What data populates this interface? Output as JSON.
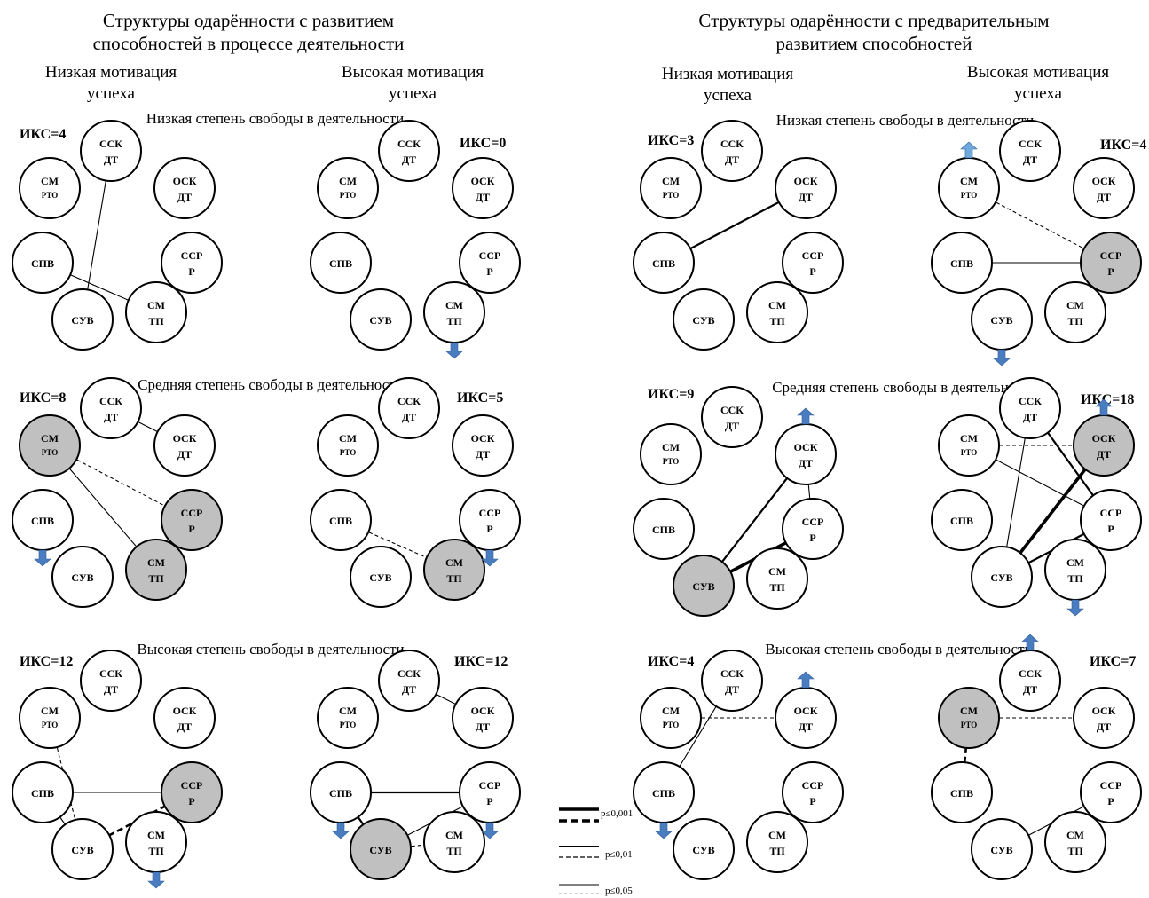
{
  "headers": {
    "left_title_1": "Структуры одарённости с развитием",
    "left_title_2": "способностей в процессе деятельности",
    "right_title_1": "Структуры одарённости с предварительным",
    "right_title_2": "развитием способностей",
    "low_motivation_1": "Низкая мотивация",
    "low_motivation_2": "успеха",
    "high_motivation_1": "Высокая мотивация",
    "high_motivation_2": "успеха"
  },
  "rows": {
    "low": "Низкая степень свободы в деятельности",
    "mid": "Средняя степень свободы в деятельности",
    "high": "Высокая степень свободы в деятельности"
  },
  "node_labels": {
    "SSK": [
      "ССК",
      "ДТ"
    ],
    "OSK": [
      "ОСК",
      "ДТ"
    ],
    "SSR": [
      "ССР",
      "Р"
    ],
    "SMTP": [
      "СМ",
      "ТП"
    ],
    "SUV": [
      "СУВ"
    ],
    "SPV": [
      "СПВ"
    ],
    "SMRTO": [
      "СМ",
      "РТО"
    ]
  },
  "panels": [
    {
      "id": "L-low-lm",
      "iks": "ИКС=4",
      "highlight": [],
      "edges": [
        [
          "SSK",
          "SUV",
          "solid-thin"
        ],
        [
          "SPV",
          "SMTP",
          "solid-thin"
        ]
      ],
      "arrows": []
    },
    {
      "id": "L-low-hm",
      "iks": "ИКС=0",
      "highlight": [],
      "edges": [],
      "arrows": [
        [
          "SMTP",
          "down"
        ]
      ]
    },
    {
      "id": "R-low-lm",
      "iks": "ИКС=3",
      "highlight": [],
      "edges": [
        [
          "SPV",
          "OSK",
          "solid-bold"
        ]
      ],
      "arrows": []
    },
    {
      "id": "R-low-hm",
      "iks": "ИКС=4",
      "highlight": [
        "SSR"
      ],
      "edges": [
        [
          "SMRTO",
          "SSR",
          "dash-thin"
        ],
        [
          "SPV",
          "SSR",
          "solid-thin"
        ]
      ],
      "arrows": [
        [
          "SMRTO",
          "up"
        ],
        [
          "SUV",
          "down"
        ]
      ]
    },
    {
      "id": "L-mid-lm",
      "iks": "ИКС=8",
      "highlight": [
        "SMRTO",
        "SSR",
        "SMTP"
      ],
      "edges": [
        [
          "SSK",
          "OSK",
          "solid-thin"
        ],
        [
          "SMRTO",
          "SSR",
          "dash-thin"
        ],
        [
          "SMRTO",
          "SMTP",
          "solid-thin"
        ],
        [
          "SSR",
          "SMTP",
          "dash-thin"
        ]
      ],
      "arrows": [
        [
          "SPV",
          "down"
        ]
      ]
    },
    {
      "id": "L-mid-hm",
      "iks": "ИКС=5",
      "highlight": [
        "SMTP"
      ],
      "edges": [
        [
          "SPV",
          "SMTP",
          "dash-thin"
        ],
        [
          "SSR",
          "SMTP",
          "dash-bold"
        ]
      ],
      "arrows": [
        [
          "SSR",
          "down"
        ]
      ]
    },
    {
      "id": "R-mid-lm",
      "iks": "ИКС=9",
      "highlight": [
        "SUV"
      ],
      "edges": [
        [
          "SUV",
          "OSK",
          "solid-bold"
        ],
        [
          "SUV",
          "SSR",
          "solid-xbold"
        ],
        [
          "OSK",
          "SSR",
          "solid-thin"
        ]
      ],
      "arrows": [
        [
          "OSK",
          "up"
        ]
      ]
    },
    {
      "id": "R-mid-hm",
      "iks": "ИКС=18",
      "highlight": [
        "OSK"
      ],
      "edges": [
        [
          "SMRTO",
          "OSK",
          "dash-thin"
        ],
        [
          "SSK",
          "SSR",
          "solid-bold"
        ],
        [
          "SSK",
          "SUV",
          "solid-thin"
        ],
        [
          "SMRTO",
          "SSR",
          "solid-thin"
        ],
        [
          "SUV",
          "OSK",
          "solid-xbold"
        ],
        [
          "SUV",
          "SSR",
          "solid-bold"
        ]
      ],
      "arrows": [
        [
          "OSK",
          "up"
        ],
        [
          "SMTP",
          "down"
        ]
      ]
    },
    {
      "id": "L-high-lm",
      "iks": "ИКС=12",
      "highlight": [
        "SSR"
      ],
      "edges": [
        [
          "SMRTO",
          "SUV",
          "dash-thin"
        ],
        [
          "SPV",
          "SSR",
          "solid-thin"
        ],
        [
          "SPV",
          "SUV",
          "solid-thin"
        ],
        [
          "SUV",
          "SSR",
          "dash-bold"
        ]
      ],
      "arrows": [
        [
          "SMTP",
          "down"
        ]
      ]
    },
    {
      "id": "L-high-hm",
      "iks": "ИКС=12",
      "highlight": [
        "SUV"
      ],
      "edges": [
        [
          "SSK",
          "OSK",
          "solid-thin"
        ],
        [
          "SPV",
          "SSR",
          "solid-bold"
        ],
        [
          "SPV",
          "SUV",
          "solid-bold"
        ],
        [
          "SUV",
          "SSR",
          "solid-thin"
        ],
        [
          "SUV",
          "SMTP",
          "dash-thin"
        ]
      ],
      "arrows": [
        [
          "SPV",
          "down"
        ],
        [
          "SSR",
          "down"
        ]
      ]
    },
    {
      "id": "R-high-lm",
      "iks": "ИКС=4",
      "highlight": [],
      "edges": [
        [
          "SSK",
          "SPV",
          "solid-thin"
        ],
        [
          "SMRTO",
          "OSK",
          "dash-thin"
        ]
      ],
      "arrows": [
        [
          "OSK",
          "up"
        ],
        [
          "SPV",
          "down"
        ]
      ]
    },
    {
      "id": "R-high-hm",
      "iks": "ИКС=7",
      "highlight": [
        "SMRTO"
      ],
      "edges": [
        [
          "SMRTO",
          "OSK",
          "dash-thin"
        ],
        [
          "SMRTO",
          "SPV",
          "dash-bold"
        ],
        [
          "SUV",
          "SSR",
          "solid-thin"
        ]
      ],
      "arrows": [
        [
          "SSK",
          "up"
        ]
      ]
    }
  ],
  "legend": {
    "items": [
      {
        "label": "p≤0,001",
        "style": "bold"
      },
      {
        "label": "p≤0,01",
        "style": "medium"
      },
      {
        "label": "p≤0,05",
        "style": "thin"
      }
    ]
  },
  "colors": {
    "highlight_fill": "#c0c0c0",
    "arrow": "#4a7cc0",
    "arrow_light": "#6fa8dc",
    "line": "#000000"
  }
}
